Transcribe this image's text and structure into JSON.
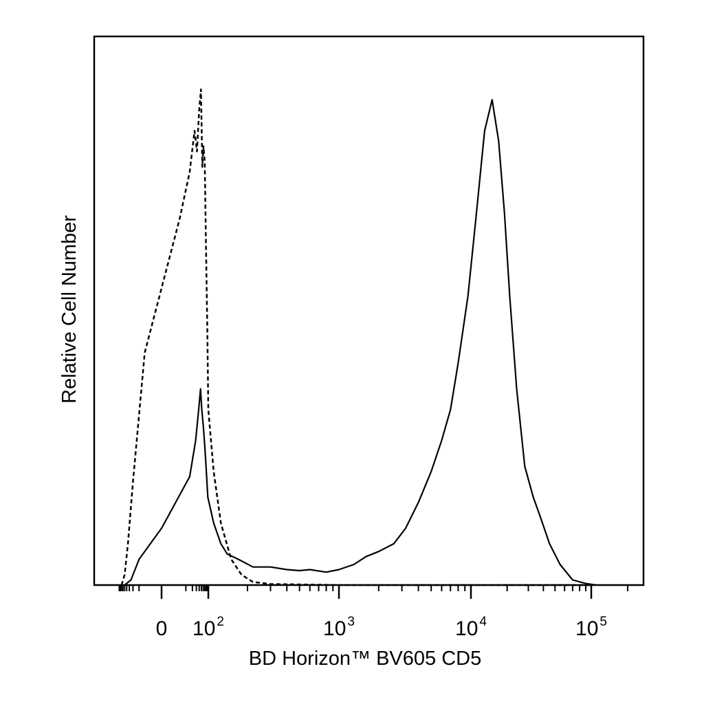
{
  "chart_data": {
    "type": "line",
    "title": "",
    "xlabel": "BD Horizon™ BV605 CD5",
    "ylabel": "Relative Cell Number",
    "x_scale": "biexponential",
    "xlim": [
      -100,
      250000
    ],
    "ylim": [
      0,
      1.0
    ],
    "grid": false,
    "legend": "none",
    "x_ticks": [
      {
        "value": 0,
        "base": "0",
        "exp": ""
      },
      {
        "value": 100,
        "base": "10",
        "exp": "2"
      },
      {
        "value": 1000,
        "base": "10",
        "exp": "3"
      },
      {
        "value": 10000,
        "base": "10",
        "exp": "4"
      },
      {
        "value": 100000,
        "base": "10",
        "exp": "5"
      }
    ],
    "series": [
      {
        "style": "solid",
        "points": [
          [
            -50,
            0
          ],
          [
            -25,
            0.01
          ],
          [
            -10,
            0.05
          ],
          [
            0,
            0.11
          ],
          [
            15,
            0.21
          ],
          [
            28,
            0.28
          ],
          [
            38,
            0.34
          ],
          [
            46,
            0.38
          ],
          [
            52,
            0.34
          ],
          [
            60,
            0.31
          ],
          [
            70,
            0.27
          ],
          [
            80,
            0.23
          ],
          [
            95,
            0.17
          ],
          [
            110,
            0.12
          ],
          [
            125,
            0.08
          ],
          [
            140,
            0.06
          ],
          [
            170,
            0.05
          ],
          [
            220,
            0.035
          ],
          [
            300,
            0.035
          ],
          [
            400,
            0.03
          ],
          [
            500,
            0.028
          ],
          [
            600,
            0.03
          ],
          [
            800,
            0.025
          ],
          [
            1000,
            0.03
          ],
          [
            1300,
            0.04
          ],
          [
            1600,
            0.055
          ],
          [
            2000,
            0.065
          ],
          [
            2600,
            0.08
          ],
          [
            3200,
            0.11
          ],
          [
            4000,
            0.16
          ],
          [
            5000,
            0.22
          ],
          [
            6000,
            0.28
          ],
          [
            7000,
            0.34
          ],
          [
            8000,
            0.43
          ],
          [
            9500,
            0.56
          ],
          [
            11000,
            0.71
          ],
          [
            13000,
            0.88
          ],
          [
            15000,
            0.94
          ],
          [
            17000,
            0.86
          ],
          [
            19000,
            0.72
          ],
          [
            21000,
            0.56
          ],
          [
            24000,
            0.38
          ],
          [
            28000,
            0.23
          ],
          [
            33000,
            0.17
          ],
          [
            38000,
            0.13
          ],
          [
            45000,
            0.08
          ],
          [
            55000,
            0.04
          ],
          [
            70000,
            0.01
          ],
          [
            90000,
            0.003
          ],
          [
            110000,
            0
          ]
        ]
      },
      {
        "style": "dashed",
        "points": [
          [
            -70,
            0
          ],
          [
            -50,
            0.02
          ],
          [
            -35,
            0.08
          ],
          [
            -20,
            0.2
          ],
          [
            -5,
            0.45
          ],
          [
            5,
            0.71
          ],
          [
            15,
            0.8
          ],
          [
            25,
            0.88
          ],
          [
            32,
            0.84
          ],
          [
            40,
            0.92
          ],
          [
            48,
            0.96
          ],
          [
            55,
            0.81
          ],
          [
            62,
            0.85
          ],
          [
            70,
            0.82
          ],
          [
            80,
            0.65
          ],
          [
            90,
            0.5
          ],
          [
            100,
            0.34
          ],
          [
            110,
            0.22
          ],
          [
            125,
            0.12
          ],
          [
            150,
            0.05
          ],
          [
            180,
            0.02
          ],
          [
            220,
            0.006
          ],
          [
            300,
            0.002
          ],
          [
            1000,
            0
          ],
          [
            10000,
            0
          ],
          [
            100000,
            0
          ]
        ]
      }
    ]
  }
}
